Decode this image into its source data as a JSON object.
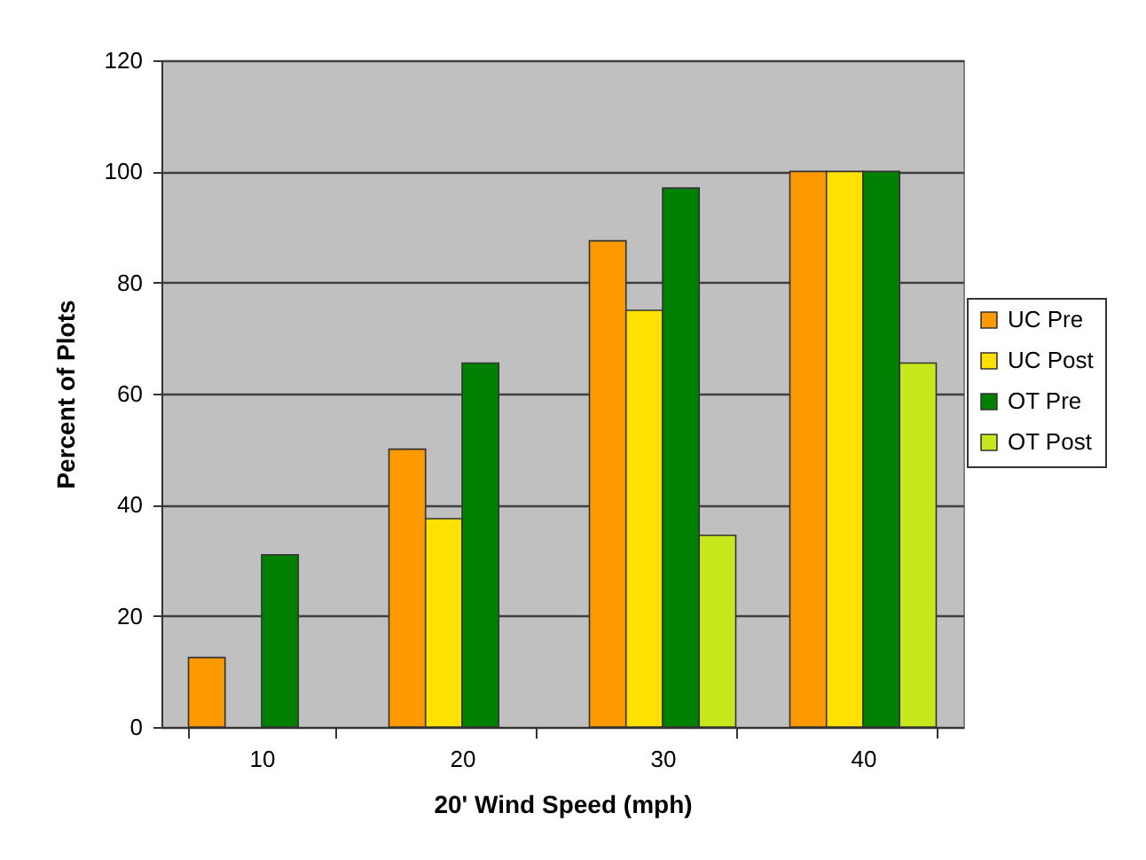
{
  "chart_data": {
    "type": "bar",
    "xlabel": "20' Wind Speed (mph)",
    "ylabel": "Percent of Plots",
    "categories": [
      "10",
      "20",
      "30",
      "40"
    ],
    "series": [
      {
        "name": "UC Pre",
        "color": "#ff9900",
        "values": [
          12.5,
          50,
          87.5,
          100
        ]
      },
      {
        "name": "UC Post",
        "color": "#ffe100",
        "values": [
          null,
          37.5,
          75,
          100
        ]
      },
      {
        "name": "OT Pre",
        "color": "#008000",
        "values": [
          31,
          65.5,
          97,
          100
        ]
      },
      {
        "name": "OT Post",
        "color": "#c6e81c",
        "values": [
          null,
          null,
          34.5,
          65.5
        ]
      }
    ],
    "ylim": [
      0,
      120
    ],
    "yticks": [
      0,
      20,
      40,
      60,
      80,
      100,
      120
    ],
    "grid": "y",
    "legend": "right"
  }
}
